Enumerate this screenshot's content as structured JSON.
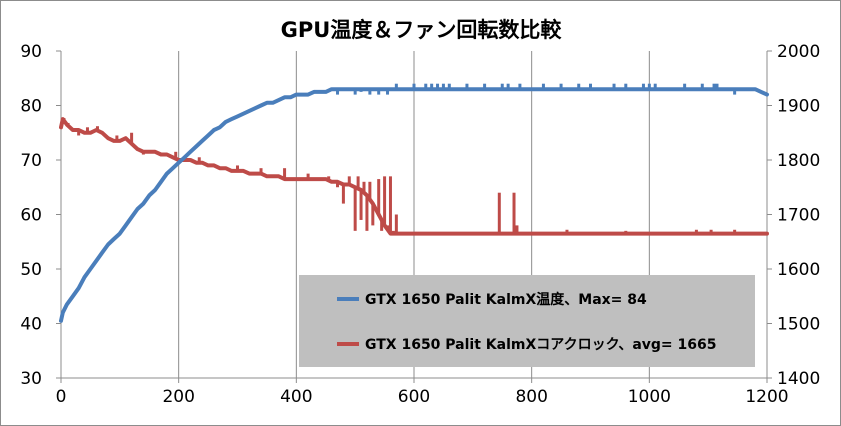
{
  "chart_data": {
    "type": "line",
    "title": "GPU温度＆ファン回転数比較",
    "xlim": [
      0,
      1200
    ],
    "x_ticks": [
      0,
      200,
      400,
      600,
      800,
      1000,
      1200
    ],
    "y_left": {
      "range": [
        30,
        90
      ],
      "ticks": [
        30,
        40,
        50,
        60,
        70,
        80,
        90
      ]
    },
    "y_right": {
      "range": [
        1400,
        2000
      ],
      "ticks": [
        1400,
        1500,
        1600,
        1700,
        1800,
        1900,
        2000
      ]
    },
    "grid": {
      "vertical": true,
      "horizontal": false
    },
    "legend": {
      "placement": "bottom-right",
      "background": "#bfbfbf",
      "entries": [
        "GTX 1650 Palit KalmX温度、Max= 84",
        "GTX 1650 Palit KalmXコアクロック、avg= 1665"
      ]
    },
    "series": [
      {
        "axis": "left",
        "color": "#4a7ebb",
        "points": [
          [
            0,
            40.5
          ],
          [
            3,
            42
          ],
          [
            10,
            43.5
          ],
          [
            20,
            45
          ],
          [
            30,
            46.5
          ],
          [
            40,
            48.5
          ],
          [
            50,
            50
          ],
          [
            60,
            51.5
          ],
          [
            70,
            53
          ],
          [
            80,
            54.5
          ],
          [
            90,
            55.5
          ],
          [
            100,
            56.5
          ],
          [
            110,
            58
          ],
          [
            120,
            59.5
          ],
          [
            130,
            61
          ],
          [
            140,
            62
          ],
          [
            150,
            63.5
          ],
          [
            160,
            64.5
          ],
          [
            170,
            66
          ],
          [
            180,
            67.5
          ],
          [
            190,
            68.5
          ],
          [
            200,
            69.5
          ],
          [
            210,
            70.5
          ],
          [
            220,
            71.5
          ],
          [
            230,
            72.5
          ],
          [
            240,
            73.5
          ],
          [
            250,
            74.5
          ],
          [
            260,
            75.5
          ],
          [
            270,
            76
          ],
          [
            280,
            77
          ],
          [
            290,
            77.5
          ],
          [
            300,
            78
          ],
          [
            310,
            78.5
          ],
          [
            320,
            79
          ],
          [
            330,
            79.5
          ],
          [
            340,
            80
          ],
          [
            350,
            80.5
          ],
          [
            360,
            80.5
          ],
          [
            370,
            81
          ],
          [
            380,
            81.5
          ],
          [
            390,
            81.5
          ],
          [
            400,
            82
          ],
          [
            410,
            82
          ],
          [
            420,
            82
          ],
          [
            430,
            82.5
          ],
          [
            440,
            82.5
          ],
          [
            450,
            82.5
          ],
          [
            460,
            83
          ],
          [
            470,
            83
          ],
          [
            480,
            83
          ],
          [
            490,
            83
          ],
          [
            500,
            83
          ],
          [
            520,
            83
          ],
          [
            540,
            83
          ],
          [
            560,
            83
          ],
          [
            580,
            83
          ],
          [
            600,
            83
          ],
          [
            620,
            83
          ],
          [
            640,
            83
          ],
          [
            660,
            83
          ],
          [
            680,
            83
          ],
          [
            700,
            83
          ],
          [
            720,
            83
          ],
          [
            740,
            83
          ],
          [
            760,
            83
          ],
          [
            780,
            83
          ],
          [
            800,
            83
          ],
          [
            820,
            83
          ],
          [
            840,
            83
          ],
          [
            860,
            83
          ],
          [
            880,
            83
          ],
          [
            900,
            83
          ],
          [
            920,
            83
          ],
          [
            940,
            83
          ],
          [
            960,
            83
          ],
          [
            980,
            83
          ],
          [
            1000,
            83
          ],
          [
            1020,
            83
          ],
          [
            1040,
            83
          ],
          [
            1060,
            83
          ],
          [
            1080,
            83
          ],
          [
            1100,
            83
          ],
          [
            1120,
            83
          ],
          [
            1140,
            83
          ],
          [
            1160,
            83
          ],
          [
            1180,
            83
          ],
          [
            1200,
            82
          ]
        ],
        "spikes": [
          [
            470,
            82
          ],
          [
            500,
            82
          ],
          [
            510,
            82.5
          ],
          [
            525,
            82
          ],
          [
            540,
            82
          ],
          [
            555,
            82
          ],
          [
            570,
            84
          ],
          [
            600,
            84
          ],
          [
            620,
            84
          ],
          [
            630,
            84
          ],
          [
            640,
            84
          ],
          [
            650,
            84
          ],
          [
            660,
            84
          ],
          [
            690,
            84
          ],
          [
            720,
            84
          ],
          [
            750,
            84
          ],
          [
            760,
            84
          ],
          [
            780,
            84
          ],
          [
            820,
            84
          ],
          [
            850,
            84
          ],
          [
            880,
            84
          ],
          [
            900,
            84
          ],
          [
            940,
            84
          ],
          [
            960,
            84
          ],
          [
            990,
            84
          ],
          [
            1000,
            84
          ],
          [
            1010,
            84
          ],
          [
            1060,
            84
          ],
          [
            1090,
            84
          ],
          [
            1110,
            84
          ],
          [
            1115,
            84
          ],
          [
            1145,
            82
          ],
          [
            1200,
            82
          ]
        ]
      },
      {
        "axis": "right",
        "color": "#be4b48",
        "points": [
          [
            0,
            1860
          ],
          [
            3,
            1875
          ],
          [
            10,
            1865
          ],
          [
            20,
            1855
          ],
          [
            30,
            1855
          ],
          [
            40,
            1850
          ],
          [
            50,
            1850
          ],
          [
            60,
            1855
          ],
          [
            70,
            1850
          ],
          [
            80,
            1840
          ],
          [
            90,
            1835
          ],
          [
            100,
            1835
          ],
          [
            110,
            1840
          ],
          [
            120,
            1830
          ],
          [
            130,
            1820
          ],
          [
            140,
            1815
          ],
          [
            150,
            1815
          ],
          [
            160,
            1815
          ],
          [
            170,
            1810
          ],
          [
            180,
            1810
          ],
          [
            190,
            1805
          ],
          [
            200,
            1800
          ],
          [
            210,
            1800
          ],
          [
            220,
            1800
          ],
          [
            230,
            1795
          ],
          [
            240,
            1795
          ],
          [
            250,
            1790
          ],
          [
            260,
            1790
          ],
          [
            270,
            1785
          ],
          [
            280,
            1785
          ],
          [
            290,
            1780
          ],
          [
            300,
            1780
          ],
          [
            310,
            1780
          ],
          [
            320,
            1775
          ],
          [
            330,
            1775
          ],
          [
            340,
            1775
          ],
          [
            350,
            1770
          ],
          [
            360,
            1770
          ],
          [
            370,
            1770
          ],
          [
            380,
            1765
          ],
          [
            390,
            1765
          ],
          [
            400,
            1765
          ],
          [
            410,
            1765
          ],
          [
            420,
            1765
          ],
          [
            430,
            1765
          ],
          [
            440,
            1765
          ],
          [
            450,
            1765
          ],
          [
            460,
            1760
          ],
          [
            470,
            1760
          ],
          [
            480,
            1755
          ],
          [
            490,
            1755
          ],
          [
            500,
            1750
          ],
          [
            510,
            1745
          ],
          [
            520,
            1735
          ],
          [
            530,
            1720
          ],
          [
            540,
            1700
          ],
          [
            550,
            1680
          ],
          [
            560,
            1665
          ],
          [
            580,
            1665
          ],
          [
            600,
            1665
          ],
          [
            650,
            1665
          ],
          [
            700,
            1665
          ],
          [
            750,
            1665
          ],
          [
            800,
            1665
          ],
          [
            850,
            1665
          ],
          [
            900,
            1665
          ],
          [
            950,
            1665
          ],
          [
            1000,
            1665
          ],
          [
            1050,
            1665
          ],
          [
            1100,
            1665
          ],
          [
            1150,
            1665
          ],
          [
            1200,
            1665
          ]
        ],
        "spikes": [
          [
            5,
            1877
          ],
          [
            12,
            1868
          ],
          [
            30,
            1845
          ],
          [
            45,
            1860
          ],
          [
            62,
            1862
          ],
          [
            95,
            1845
          ],
          [
            120,
            1850
          ],
          [
            140,
            1810
          ],
          [
            195,
            1815
          ],
          [
            235,
            1805
          ],
          [
            270,
            1785
          ],
          [
            300,
            1790
          ],
          [
            340,
            1785
          ],
          [
            380,
            1785
          ],
          [
            420,
            1775
          ],
          [
            455,
            1770
          ],
          [
            470,
            1750
          ],
          [
            480,
            1720
          ],
          [
            490,
            1770
          ],
          [
            500,
            1670
          ],
          [
            505,
            1770
          ],
          [
            510,
            1690
          ],
          [
            515,
            1760
          ],
          [
            520,
            1670
          ],
          [
            525,
            1760
          ],
          [
            530,
            1680
          ],
          [
            540,
            1765
          ],
          [
            545,
            1670
          ],
          [
            550,
            1770
          ],
          [
            555,
            1680
          ],
          [
            560,
            1770
          ],
          [
            565,
            1670
          ],
          [
            570,
            1700
          ],
          [
            580,
            1665
          ],
          [
            745,
            1740
          ],
          [
            770,
            1740
          ],
          [
            775,
            1680
          ],
          [
            860,
            1672
          ],
          [
            960,
            1670
          ],
          [
            1080,
            1672
          ],
          [
            1105,
            1672
          ],
          [
            1145,
            1672
          ]
        ]
      }
    ]
  }
}
